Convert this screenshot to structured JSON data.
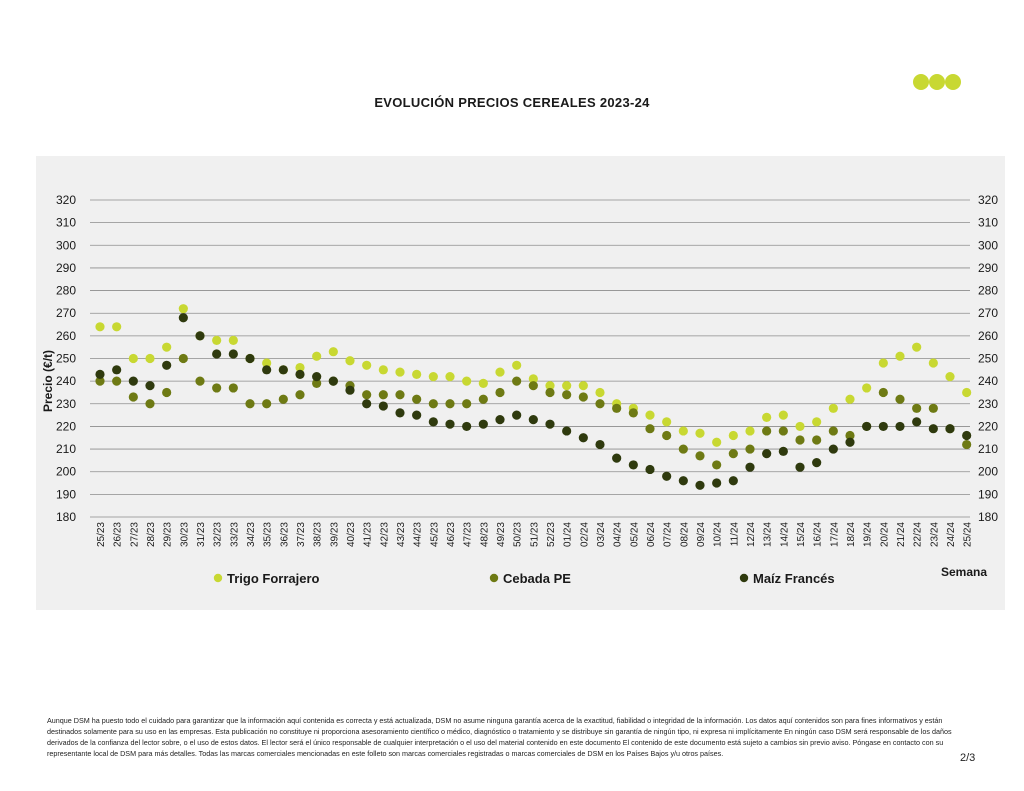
{
  "page": {
    "title": "EVOLUCIÓN PRECIOS CEREALES 2023-24",
    "page_number": "2/3",
    "disclaimer": "Aunque DSM ha puesto todo el cuidado para garantizar que la información aquí contenida es correcta y está actualizada, DSM no asume ninguna garantía acerca de la exactitud, fiabilidad o integridad de la información. Los datos aquí contenidos son para fines informativos y están destinados solamente para su uso en las empresas. Esta publicación no constituye ni proporciona asesoramiento científico o médico, diagnóstico o tratamiento y se distribuye sin garantía de ningún tipo, ni expresa ni implícitamente En ningún caso DSM será responsable de los daños derivados de la confianza del lector sobre, o el uso de estos datos. El lector será el único responsable de cualquier interpretación o el uso del material contenido en este documento El contenido de este documento está sujeto a cambios sin previo aviso. Póngase en contacto con su representante local de DSM para más detalles. Todas las marcas comerciales mencionadas en este folleto son marcas comerciales registradas o marcas comerciales de DSM en los Países Bajos y/u otros países."
  },
  "colors": {
    "trigo": "#c8d832",
    "cebada": "#6e7a14",
    "maiz": "#2f3a0e",
    "grid": "#8c8c8c",
    "panel": "#f0f0f0"
  },
  "chart_data": {
    "type": "scatter",
    "title": "EVOLUCIÓN PRECIOS CEREALES 2023-24",
    "xlabel": "Semana",
    "ylabel": "Precio (€/t)",
    "ylim": [
      180,
      320
    ],
    "yticks": [
      180,
      190,
      200,
      210,
      220,
      230,
      240,
      250,
      260,
      270,
      280,
      290,
      300,
      310,
      320
    ],
    "grid": true,
    "legend_position": "bottom",
    "categories": [
      "25/23",
      "26/23",
      "27/23",
      "28/23",
      "29/23",
      "30/23",
      "31/23",
      "32/23",
      "33/23",
      "34/23",
      "35/23",
      "36/23",
      "37/23",
      "38/23",
      "39/23",
      "40/23",
      "41/23",
      "42/23",
      "43/23",
      "44/23",
      "45/23",
      "46/23",
      "47/23",
      "48/23",
      "49/23",
      "50/23",
      "51/23",
      "52/23",
      "01/24",
      "02/24",
      "03/24",
      "04/24",
      "05/24",
      "06/24",
      "07/24",
      "08/24",
      "09/24",
      "10/24",
      "11/24",
      "12/24",
      "13/24",
      "14/24",
      "15/24",
      "16/24",
      "17/24",
      "18/24",
      "19/24",
      "20/24",
      "21/24",
      "22/24",
      "23/24",
      "24/24",
      "25/24"
    ],
    "series": [
      {
        "name": "Trigo Forrajero",
        "color_key": "trigo",
        "values": [
          264,
          264,
          250,
          250,
          255,
          272,
          260,
          258,
          258,
          250,
          248,
          245,
          246,
          251,
          253,
          249,
          247,
          245,
          244,
          243,
          242,
          242,
          240,
          239,
          244,
          247,
          241,
          238,
          238,
          238,
          235,
          230,
          228,
          225,
          222,
          218,
          217,
          213,
          216,
          218,
          224,
          225,
          220,
          222,
          228,
          232,
          237,
          248,
          251,
          255,
          248,
          242,
          235
        ]
      },
      {
        "name": "Cebada PE",
        "color_key": "cebada",
        "values": [
          240,
          240,
          233,
          230,
          235,
          250,
          240,
          237,
          237,
          230,
          230,
          232,
          234,
          239,
          240,
          238,
          234,
          234,
          234,
          232,
          230,
          230,
          230,
          232,
          235,
          240,
          238,
          235,
          234,
          233,
          230,
          228,
          226,
          219,
          216,
          210,
          207,
          203,
          208,
          210,
          218,
          218,
          214,
          214,
          218,
          216,
          220,
          235,
          232,
          228,
          228,
          219,
          212
        ]
      },
      {
        "name": "Maíz Francés",
        "color_key": "maiz",
        "values": [
          243,
          245,
          240,
          238,
          247,
          268,
          260,
          252,
          252,
          250,
          245,
          245,
          243,
          242,
          240,
          236,
          230,
          229,
          226,
          225,
          222,
          221,
          220,
          221,
          223,
          225,
          223,
          221,
          218,
          215,
          212,
          206,
          203,
          201,
          198,
          196,
          194,
          195,
          196,
          202,
          208,
          209,
          202,
          204,
          210,
          213,
          220,
          220,
          220,
          222,
          219,
          219,
          216
        ]
      }
    ]
  }
}
